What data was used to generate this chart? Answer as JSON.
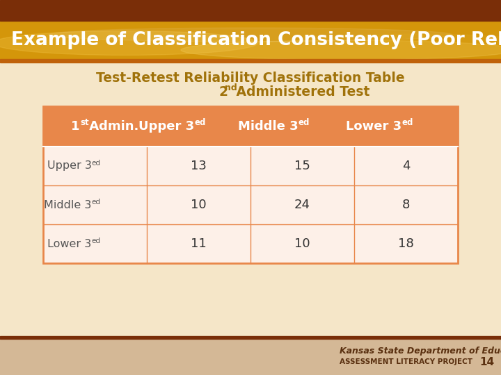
{
  "title": "Example of Classification Consistency (Poor Reliability)",
  "subtitle_line1": "Test-Retest Reliability Classification Table",
  "subtitle_line2_num": "2",
  "subtitle_line2_super": "nd",
  "subtitle_line2_rest": " Administered Test",
  "table_data": [
    [
      "13",
      "15",
      "4"
    ],
    [
      "10",
      "24",
      "8"
    ],
    [
      "11",
      "10",
      "18"
    ]
  ],
  "slide_bg": "#f5e6c8",
  "header_bg": "#e8874a",
  "row_bg": "#fdf0e8",
  "subtitle_color": "#a0720a",
  "cell_border_color": "#e8874a",
  "footer_bg": "#d4b896",
  "footer_text1": "Kansas State Department of Education",
  "footer_text2": "ASSESSMENT LITERACY PROJECT",
  "footer_page": "14",
  "top_bar_color": "#7a2e08",
  "header_gold": "#d4960a",
  "bottom_header_stripe": "#c0620a"
}
